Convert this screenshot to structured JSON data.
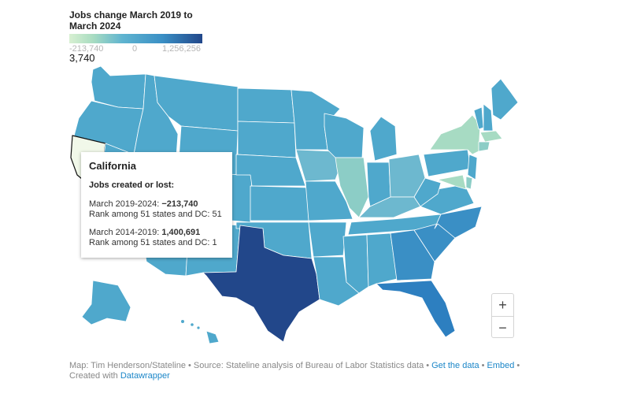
{
  "legend": {
    "title": "Jobs change March 2019 to March 2024",
    "min_label": "-213,740",
    "mid_label": "0",
    "max_label": "1,256,256",
    "cursor_label": "3,740",
    "colors": [
      "#d8f0d2",
      "#a8dcc1",
      "#5fb4d0",
      "#3a8fc5",
      "#22478a"
    ]
  },
  "tooltip": {
    "state": "California",
    "subtitle": "Jobs created or lost:",
    "period1_label": "March 2019-2024: ",
    "period1_value": "−213,740",
    "period1_rank": "Rank among 51 states and DC: 51",
    "period2_label": "March 2014-2019: ",
    "period2_value": "1,400,691",
    "period2_rank": "Rank among 51 states and DC: 1"
  },
  "zoom": {
    "in_label": "+",
    "out_label": "−"
  },
  "footer": {
    "source_text": "Map: Tim Henderson/Stateline • Source: Stateline analysis of Bureau of Labor Statistics data",
    "get_data_link": "Get the data",
    "embed_link": "Embed",
    "created_with": "Created with",
    "datawrapper_link": "Datawrapper"
  },
  "map": {
    "highlighted_state": "California",
    "highlight_color": "#f1f8e9",
    "state_colors": {
      "base": "#4fa8cc",
      "dark": "#22478a",
      "mid_dark": "#2d7fc0",
      "light": "#8ccdc6",
      "pale": "#a7dbc3"
    }
  }
}
